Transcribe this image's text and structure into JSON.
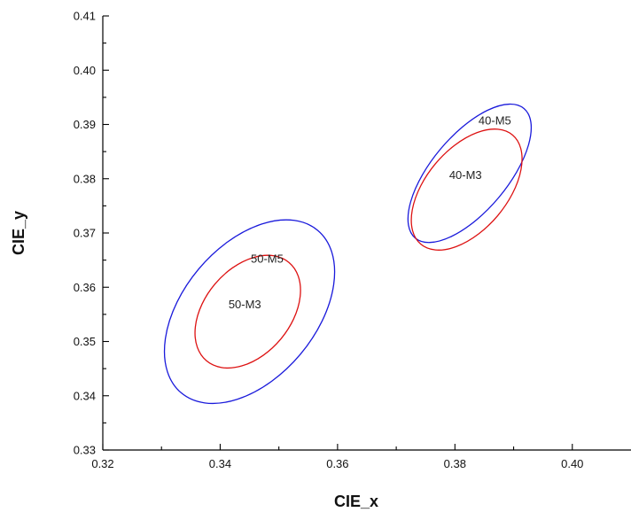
{
  "chart_data": {
    "type": "scatter",
    "title": "",
    "xlabel": "CIE_x",
    "ylabel": "CIE_y",
    "xlim": [
      0.32,
      0.41
    ],
    "ylim": [
      0.33,
      0.41
    ],
    "x_ticks": [
      "0.32",
      "0.34",
      "0.36",
      "0.38",
      "0.40"
    ],
    "y_ticks": [
      "0.33",
      "0.34",
      "0.35",
      "0.36",
      "0.37",
      "0.38",
      "0.39",
      "0.40",
      "0.41"
    ],
    "grid": false,
    "series": [
      {
        "label": "40-M5",
        "color": "#1a1adb",
        "center": [
          0.3825,
          0.381
        ],
        "x_range": [
          0.372,
          0.393
        ],
        "y_range": [
          0.368,
          0.3935
        ]
      },
      {
        "label": "40-M3",
        "color": "#dd1111",
        "center": [
          0.382,
          0.378
        ],
        "x_range": [
          0.377,
          0.3885
        ],
        "y_range": [
          0.3705,
          0.3882
        ]
      },
      {
        "label": "50-M5",
        "color": "#1a1adb",
        "center": [
          0.345,
          0.3555
        ],
        "x_range": [
          0.3375,
          0.353
        ],
        "y_range": [
          0.343,
          0.3685
        ]
      },
      {
        "label": "50-M3",
        "color": "#dd1111",
        "center": [
          0.3447,
          0.3555
        ],
        "x_range": [
          0.3405,
          0.349
        ],
        "y_range": [
          0.3482,
          0.3632
        ]
      }
    ]
  }
}
